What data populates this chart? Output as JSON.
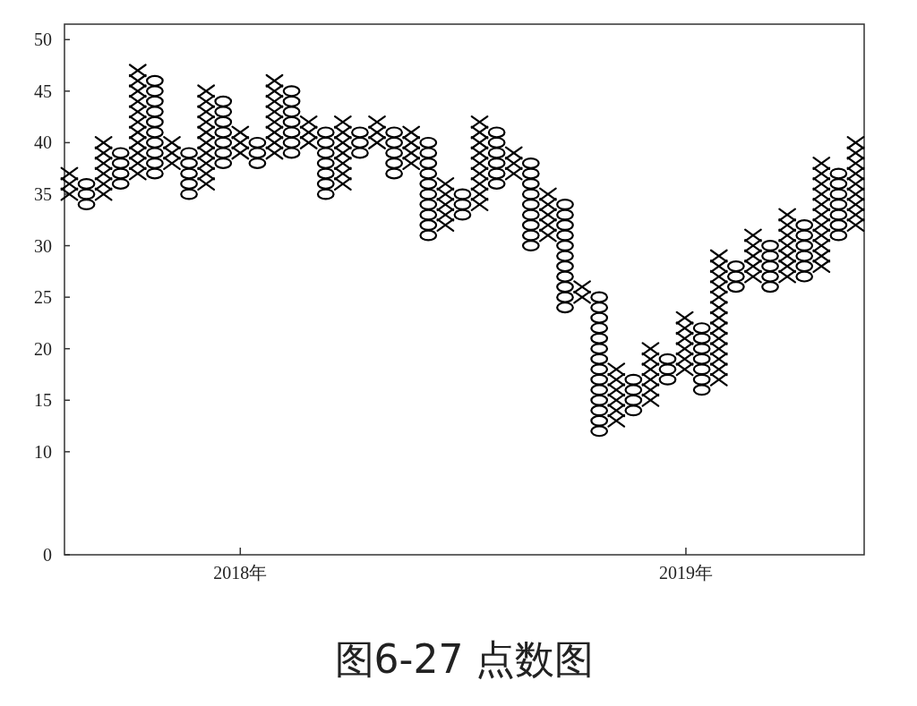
{
  "chart_data": {
    "type": "scatter",
    "title": "图6-27 点数图",
    "xlim": [
      "2017-08-10",
      "2019-05-27"
    ],
    "xticks": [
      {
        "value": "2018",
        "label": "2018年"
      },
      {
        "value": "2019",
        "label": "2019年"
      }
    ],
    "ylim": [
      0,
      51.5
    ],
    "yticks": [
      0,
      10,
      15,
      20,
      25,
      30,
      35,
      40,
      45,
      50
    ],
    "series": [
      {
        "color": "#000000",
        "marker": "cross",
        "x": [
          "2017-08-14",
          "2017-08-14",
          "2017-08-14",
          "2017-09-11",
          "2017-09-11",
          "2017-09-11",
          "2017-09-11",
          "2017-09-11",
          "2017-09-11",
          "2017-10-09",
          "2017-10-09",
          "2017-10-09",
          "2017-10-09",
          "2017-10-09",
          "2017-10-09",
          "2017-10-09",
          "2017-10-09",
          "2017-10-09",
          "2017-10-09",
          "2017-10-09",
          "2017-11-06",
          "2017-11-06",
          "2017-11-06",
          "2017-12-04",
          "2017-12-04",
          "2017-12-04",
          "2017-12-04",
          "2017-12-04",
          "2017-12-04",
          "2017-12-04",
          "2017-12-04",
          "2017-12-04",
          "2017-12-04",
          "2018-01-01",
          "2018-01-01",
          "2018-01-01",
          "2018-01-29",
          "2018-01-29",
          "2018-01-29",
          "2018-01-29",
          "2018-01-29",
          "2018-01-29",
          "2018-01-29",
          "2018-01-29",
          "2018-02-26",
          "2018-02-26",
          "2018-02-26",
          "2018-03-26",
          "2018-03-26",
          "2018-03-26",
          "2018-03-26",
          "2018-03-26",
          "2018-03-26",
          "2018-03-26",
          "2018-04-23",
          "2018-04-23",
          "2018-04-23",
          "2018-05-21",
          "2018-05-21",
          "2018-05-21",
          "2018-05-21",
          "2018-06-18",
          "2018-06-18",
          "2018-06-18",
          "2018-06-18",
          "2018-06-18",
          "2018-07-16",
          "2018-07-16",
          "2018-07-16",
          "2018-07-16",
          "2018-07-16",
          "2018-07-16",
          "2018-07-16",
          "2018-07-16",
          "2018-07-16",
          "2018-08-13",
          "2018-08-13",
          "2018-08-13",
          "2018-09-10",
          "2018-09-10",
          "2018-09-10",
          "2018-09-10",
          "2018-09-10",
          "2018-10-08",
          "2018-10-08",
          "2018-11-05",
          "2018-11-05",
          "2018-11-05",
          "2018-11-05",
          "2018-11-05",
          "2018-11-05",
          "2018-12-03",
          "2018-12-03",
          "2018-12-03",
          "2018-12-03",
          "2018-12-03",
          "2018-12-03",
          "2018-12-31",
          "2018-12-31",
          "2018-12-31",
          "2018-12-31",
          "2018-12-31",
          "2018-12-31",
          "2019-01-28",
          "2019-01-28",
          "2019-01-28",
          "2019-01-28",
          "2019-01-28",
          "2019-01-28",
          "2019-01-28",
          "2019-01-28",
          "2019-01-28",
          "2019-01-28",
          "2019-01-28",
          "2019-01-28",
          "2019-01-28",
          "2019-02-25",
          "2019-02-25",
          "2019-02-25",
          "2019-02-25",
          "2019-02-25",
          "2019-03-25",
          "2019-03-25",
          "2019-03-25",
          "2019-03-25",
          "2019-03-25",
          "2019-03-25",
          "2019-03-25",
          "2019-04-22",
          "2019-04-22",
          "2019-04-22",
          "2019-04-22",
          "2019-04-22",
          "2019-04-22",
          "2019-04-22",
          "2019-04-22",
          "2019-04-22",
          "2019-04-22",
          "2019-04-22",
          "2019-05-20",
          "2019-05-20",
          "2019-05-20",
          "2019-05-20",
          "2019-05-20",
          "2019-05-20",
          "2019-05-20",
          "2019-05-20",
          "2019-05-20"
        ],
        "values": [
          35,
          36,
          37,
          35,
          36,
          37,
          38,
          39,
          40,
          37,
          38,
          39,
          40,
          41,
          42,
          43,
          44,
          45,
          46,
          47,
          38,
          39,
          40,
          36,
          37,
          38,
          39,
          40,
          41,
          42,
          43,
          44,
          45,
          39,
          40,
          41,
          39,
          40,
          41,
          42,
          43,
          44,
          45,
          46,
          40,
          41,
          42,
          36,
          37,
          38,
          39,
          40,
          41,
          42,
          40,
          41,
          42,
          38,
          39,
          40,
          41,
          32,
          33,
          34,
          35,
          36,
          34,
          35,
          36,
          37,
          38,
          39,
          40,
          41,
          42,
          37,
          38,
          39,
          31,
          32,
          33,
          34,
          35,
          25,
          26,
          13,
          14,
          15,
          16,
          17,
          18,
          15,
          16,
          17,
          18,
          19,
          20,
          18,
          19,
          20,
          21,
          22,
          23,
          17,
          18,
          19,
          20,
          21,
          22,
          23,
          24,
          25,
          26,
          27,
          28,
          29,
          27,
          28,
          29,
          30,
          31,
          27,
          28,
          29,
          30,
          31,
          32,
          33,
          28,
          29,
          30,
          31,
          32,
          33,
          34,
          35,
          36,
          37,
          38,
          32,
          33,
          34,
          35,
          36,
          37,
          38,
          39,
          40
        ]
      },
      {
        "color": "#000000",
        "marker": "circle",
        "x": [
          "2017-08-28",
          "2017-08-28",
          "2017-08-28",
          "2017-09-25",
          "2017-09-25",
          "2017-09-25",
          "2017-09-25",
          "2017-10-23",
          "2017-10-23",
          "2017-10-23",
          "2017-10-23",
          "2017-10-23",
          "2017-10-23",
          "2017-10-23",
          "2017-10-23",
          "2017-10-23",
          "2017-10-23",
          "2017-11-20",
          "2017-11-20",
          "2017-11-20",
          "2017-11-20",
          "2017-11-20",
          "2017-12-18",
          "2017-12-18",
          "2017-12-18",
          "2017-12-18",
          "2017-12-18",
          "2017-12-18",
          "2017-12-18",
          "2018-01-15",
          "2018-01-15",
          "2018-01-15",
          "2018-02-12",
          "2018-02-12",
          "2018-02-12",
          "2018-02-12",
          "2018-02-12",
          "2018-02-12",
          "2018-02-12",
          "2018-03-12",
          "2018-03-12",
          "2018-03-12",
          "2018-03-12",
          "2018-03-12",
          "2018-03-12",
          "2018-03-12",
          "2018-04-09",
          "2018-04-09",
          "2018-04-09",
          "2018-05-07",
          "2018-05-07",
          "2018-05-07",
          "2018-05-07",
          "2018-05-07",
          "2018-06-04",
          "2018-06-04",
          "2018-06-04",
          "2018-06-04",
          "2018-06-04",
          "2018-06-04",
          "2018-06-04",
          "2018-06-04",
          "2018-06-04",
          "2018-06-04",
          "2018-07-02",
          "2018-07-02",
          "2018-07-02",
          "2018-07-30",
          "2018-07-30",
          "2018-07-30",
          "2018-07-30",
          "2018-07-30",
          "2018-07-30",
          "2018-08-27",
          "2018-08-27",
          "2018-08-27",
          "2018-08-27",
          "2018-08-27",
          "2018-08-27",
          "2018-08-27",
          "2018-08-27",
          "2018-08-27",
          "2018-09-24",
          "2018-09-24",
          "2018-09-24",
          "2018-09-24",
          "2018-09-24",
          "2018-09-24",
          "2018-09-24",
          "2018-09-24",
          "2018-09-24",
          "2018-09-24",
          "2018-09-24",
          "2018-10-22",
          "2018-10-22",
          "2018-10-22",
          "2018-10-22",
          "2018-10-22",
          "2018-10-22",
          "2018-10-22",
          "2018-10-22",
          "2018-10-22",
          "2018-10-22",
          "2018-10-22",
          "2018-10-22",
          "2018-10-22",
          "2018-10-22",
          "2018-11-19",
          "2018-11-19",
          "2018-11-19",
          "2018-11-19",
          "2018-12-17",
          "2018-12-17",
          "2018-12-17",
          "2019-01-14",
          "2019-01-14",
          "2019-01-14",
          "2019-01-14",
          "2019-01-14",
          "2019-01-14",
          "2019-01-14",
          "2019-02-11",
          "2019-02-11",
          "2019-02-11",
          "2019-03-11",
          "2019-03-11",
          "2019-03-11",
          "2019-03-11",
          "2019-03-11",
          "2019-04-08",
          "2019-04-08",
          "2019-04-08",
          "2019-04-08",
          "2019-04-08",
          "2019-04-08",
          "2019-05-06",
          "2019-05-06",
          "2019-05-06",
          "2019-05-06",
          "2019-05-06",
          "2019-05-06",
          "2019-05-06"
        ],
        "values": [
          34,
          35,
          36,
          36,
          37,
          38,
          39,
          37,
          38,
          39,
          40,
          41,
          42,
          43,
          44,
          45,
          46,
          35,
          36,
          37,
          38,
          39,
          38,
          39,
          40,
          41,
          42,
          43,
          44,
          38,
          39,
          40,
          39,
          40,
          41,
          42,
          43,
          44,
          45,
          35,
          36,
          37,
          38,
          39,
          40,
          41,
          39,
          40,
          41,
          37,
          38,
          39,
          40,
          41,
          31,
          32,
          33,
          34,
          35,
          36,
          37,
          38,
          39,
          40,
          33,
          34,
          35,
          36,
          37,
          38,
          39,
          40,
          41,
          30,
          31,
          32,
          33,
          34,
          35,
          36,
          37,
          38,
          24,
          25,
          26,
          27,
          28,
          29,
          30,
          31,
          32,
          33,
          34,
          12,
          13,
          14,
          15,
          16,
          17,
          18,
          19,
          20,
          21,
          22,
          23,
          24,
          25,
          14,
          15,
          16,
          17,
          17,
          18,
          19,
          16,
          17,
          18,
          19,
          20,
          21,
          22,
          26,
          27,
          28,
          26,
          27,
          28,
          29,
          30,
          27,
          28,
          29,
          30,
          31,
          32,
          31,
          32,
          33,
          34,
          35,
          36,
          37
        ]
      }
    ]
  }
}
